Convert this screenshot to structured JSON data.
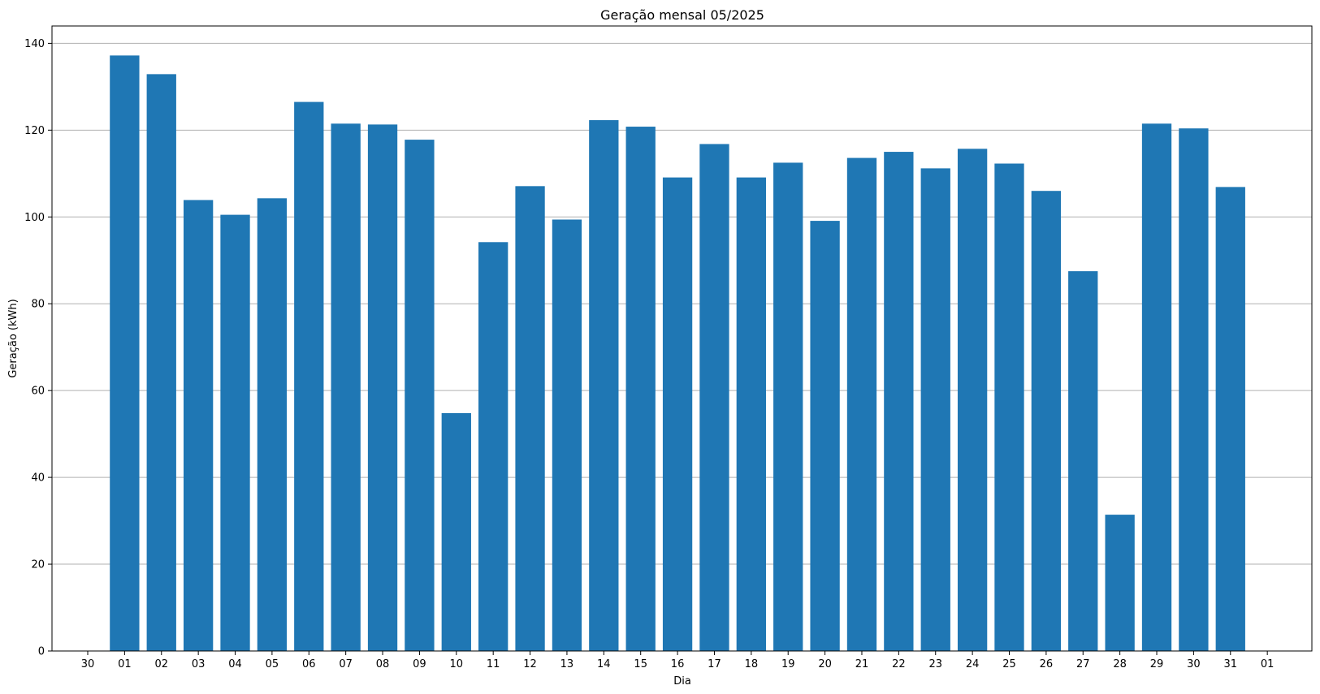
{
  "chart_data": {
    "type": "bar",
    "title": "Geração mensal 05/2025",
    "xlabel": "Dia",
    "ylabel": "Geração (kWh)",
    "ylim": [
      0,
      144
    ],
    "yticks": [
      0,
      20,
      40,
      60,
      80,
      100,
      120,
      140
    ],
    "grid": "y",
    "color": "#1f77b4",
    "x_tick_labels": [
      "30",
      "01",
      "02",
      "03",
      "04",
      "05",
      "06",
      "07",
      "08",
      "09",
      "10",
      "11",
      "12",
      "13",
      "14",
      "15",
      "16",
      "17",
      "18",
      "19",
      "20",
      "21",
      "22",
      "23",
      "24",
      "25",
      "26",
      "27",
      "28",
      "29",
      "30",
      "31",
      "01"
    ],
    "categories": [
      "01",
      "02",
      "03",
      "04",
      "05",
      "06",
      "07",
      "08",
      "09",
      "10",
      "11",
      "12",
      "13",
      "14",
      "15",
      "16",
      "17",
      "18",
      "19",
      "20",
      "21",
      "22",
      "23",
      "24",
      "25",
      "26",
      "27",
      "28",
      "29",
      "30",
      "31"
    ],
    "values": [
      137.2,
      132.9,
      103.9,
      100.5,
      104.3,
      126.5,
      121.5,
      121.3,
      117.8,
      54.8,
      94.2,
      107.1,
      99.4,
      122.3,
      120.8,
      109.1,
      116.8,
      109.1,
      112.5,
      99.1,
      113.6,
      115.0,
      111.2,
      115.7,
      112.3,
      106.0,
      87.5,
      31.4,
      121.5,
      120.4,
      106.9
    ]
  }
}
